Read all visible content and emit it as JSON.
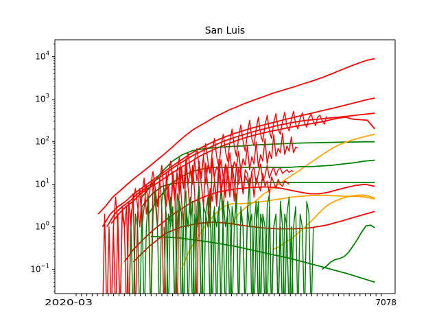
{
  "chart_data": {
    "type": "line",
    "title": "San Luis",
    "xlabel": "",
    "ylabel": "",
    "yscale": "log",
    "ylim": [
      0.027,
      25000
    ],
    "y_ticks": [
      {
        "value": 0.1,
        "base": "10",
        "exp": "−1"
      },
      {
        "value": 1,
        "base": "10",
        "exp": "0"
      },
      {
        "value": 10,
        "base": "10",
        "exp": "1"
      },
      {
        "value": 100,
        "base": "10",
        "exp": "2"
      },
      {
        "value": 1000,
        "base": "10",
        "exp": "3"
      },
      {
        "value": 10000,
        "base": "10",
        "exp": "4"
      }
    ],
    "x_tick_label_left": "2020-03",
    "x_tick_label_right": "7078",
    "x_tick_count": 58,
    "n_points": 140,
    "grid": false,
    "series": [
      {
        "color": "#ff0000",
        "kind": "smooth",
        "start": 10,
        "values": [
          2,
          3,
          5,
          7,
          10,
          14,
          19,
          26,
          36,
          50,
          70,
          100,
          140,
          190,
          240,
          300,
          380,
          460,
          560,
          660,
          780,
          900,
          1040,
          1200,
          1380,
          1560,
          1760,
          1980,
          2250,
          2550,
          2900,
          3350,
          3900,
          4600,
          5400,
          6300,
          7300,
          8300,
          9000
        ]
      },
      {
        "color": "#ff0000",
        "kind": "smooth",
        "start": 12,
        "values": [
          1,
          2,
          3,
          4,
          6,
          8,
          11,
          15,
          20,
          27,
          36,
          48,
          62,
          78,
          95,
          115,
          135,
          158,
          180,
          205,
          230,
          258,
          285,
          318,
          352,
          390,
          430,
          475,
          525,
          580,
          640,
          710,
          790,
          880,
          980,
          1070
        ]
      },
      {
        "color": "#ff0000",
        "kind": "smooth",
        "start": 14,
        "values": [
          1,
          2,
          3,
          4,
          6,
          8,
          11,
          15,
          20,
          27,
          35,
          45,
          56,
          68,
          82,
          98,
          115,
          132,
          150,
          170,
          190,
          212,
          234,
          258,
          280,
          300,
          318,
          332,
          346,
          360,
          375,
          392,
          410,
          430,
          450,
          470
        ]
      },
      {
        "color": "#ff0000",
        "kind": "smooth",
        "start": 16,
        "values": [
          1.2,
          2,
          3,
          4,
          6,
          8,
          10,
          13,
          17,
          22,
          28,
          35,
          45,
          55,
          66,
          78,
          90,
          105,
          120,
          135,
          150,
          165,
          180,
          195,
          212,
          228,
          245,
          262,
          280,
          300,
          330,
          360,
          380,
          340,
          330,
          320,
          200
        ]
      },
      {
        "color": "#008000",
        "kind": "smooth",
        "start": 30,
        "values": [
          5,
          10,
          20,
          35,
          50,
          62,
          68,
          72,
          75,
          78,
          80,
          84,
          86,
          88,
          90,
          92,
          94,
          95,
          96,
          97,
          98,
          99,
          100,
          100
        ]
      },
      {
        "color": "#ffa500",
        "kind": "smooth",
        "start": 70,
        "values": [
          1,
          2,
          3,
          4,
          6,
          8,
          11,
          15,
          20,
          28,
          38,
          52,
          70,
          88,
          105,
          120,
          135,
          150
        ]
      },
      {
        "color": "#008000",
        "kind": "smooth",
        "start": 33,
        "values": [
          2,
          5,
          10,
          15,
          20,
          23,
          25,
          25,
          25,
          25,
          25,
          25,
          25,
          25,
          26,
          26,
          27,
          28,
          30,
          32,
          35,
          37
        ]
      },
      {
        "color": "#008000",
        "kind": "smooth",
        "start": 30,
        "values": [
          3,
          6,
          9,
          10.5,
          11,
          11,
          11,
          11,
          11,
          11,
          11,
          11,
          11,
          11,
          11,
          11,
          11,
          11,
          11,
          11,
          11,
          11,
          11,
          11
        ]
      },
      {
        "color": "#ff0000",
        "kind": "smooth",
        "start": 22,
        "values": [
          0.15,
          0.3,
          0.5,
          0.8,
          1.2,
          1.8,
          2.5,
          3.5,
          4.5,
          5.5,
          6.5,
          7.2,
          7.8,
          8.2,
          8.5,
          8.7,
          8.5,
          8,
          7.2,
          6.5,
          6,
          6,
          6.5,
          7.5,
          8.5,
          9.5,
          10,
          9
        ]
      },
      {
        "color": "#ffa500",
        "kind": "smooth",
        "start": 48,
        "values": [
          0.1,
          0.3,
          0.6,
          1.2,
          2,
          3,
          3.5,
          3.5,
          3.6,
          3.8,
          4,
          4.3,
          4.6,
          5,
          5.2,
          5.4,
          5.5,
          5.5,
          5.4,
          5.3,
          5.2,
          5.2,
          5,
          4.5
        ]
      },
      {
        "color": "#ff0000",
        "kind": "smooth",
        "start": 26,
        "values": [
          0.15,
          0.35,
          0.7,
          1,
          1.2,
          1.3,
          1.2,
          1.05,
          0.95,
          0.9,
          0.9,
          0.95,
          1.1,
          1.4,
          1.8,
          2.3
        ]
      },
      {
        "color": "#008000",
        "kind": "smooth",
        "start": 34,
        "values": [
          0.6,
          0.55,
          0.45,
          0.35,
          0.25,
          0.18,
          0.12,
          0.08,
          0.05
        ]
      },
      {
        "color": "#008000",
        "kind": "smooth",
        "start": 112,
        "values": [
          0.1,
          0.12,
          0.15,
          0.17,
          0.18,
          0.2,
          0.25,
          0.35,
          0.5,
          0.75,
          1.05,
          1.1,
          0.95
        ]
      },
      {
        "color": "#ffa500",
        "kind": "smooth",
        "start": 90,
        "values": [
          0.3,
          0.35,
          0.45,
          0.55,
          0.75,
          1,
          1.4,
          2,
          2.8,
          3.6,
          4.2,
          4.8,
          5.2,
          5.5,
          5.6,
          5.3,
          4.7
        ]
      },
      {
        "color": "#ff0000",
        "kind": "noisy",
        "start": 12,
        "values": [
          0,
          2,
          0,
          1,
          0,
          1,
          5,
          1,
          0,
          2,
          1,
          3,
          0,
          2,
          4,
          8,
          3,
          1,
          6,
          14,
          2,
          5,
          10,
          20,
          8,
          3,
          12,
          28,
          6,
          9,
          18,
          35,
          12,
          5,
          22,
          42,
          15,
          8,
          30,
          55,
          20,
          10,
          40,
          70,
          25,
          14,
          48,
          90,
          35,
          18,
          60,
          120,
          45,
          25,
          80,
          150,
          60,
          35,
          100,
          200,
          80,
          45,
          130,
          250,
          100,
          60,
          160,
          320,
          120,
          80,
          200,
          380,
          150,
          100,
          240,
          420,
          180,
          120,
          280,
          460,
          200,
          150,
          300,
          500,
          230,
          180,
          330,
          520,
          260,
          200,
          350,
          480,
          280,
          220,
          360,
          450,
          300,
          240,
          380,
          420,
          320,
          260,
          400
        ]
      },
      {
        "color": "#ff0000",
        "kind": "noisy",
        "start": 16,
        "values": [
          0,
          1,
          0,
          2,
          0,
          3,
          1,
          0,
          4,
          1,
          6,
          0,
          2,
          8,
          1,
          3,
          10,
          2,
          0,
          12,
          4,
          1,
          15,
          3,
          0,
          18,
          5,
          2,
          20,
          6,
          0,
          25,
          4,
          1,
          30,
          8,
          2,
          28,
          6,
          0,
          35,
          10,
          3,
          32,
          8,
          1,
          40,
          12,
          4,
          38,
          10,
          2,
          30,
          14,
          5,
          28,
          12,
          3,
          25,
          15,
          6,
          22,
          18,
          8,
          20,
          25,
          10,
          18,
          30,
          12,
          16,
          28,
          14,
          20,
          25,
          16,
          22,
          24,
          18,
          20,
          22,
          19,
          21,
          20
        ]
      },
      {
        "color": "#ff0000",
        "kind": "noisy",
        "start": 40,
        "values": [
          6,
          3,
          9,
          2,
          12,
          4,
          18,
          6,
          25,
          8,
          40,
          10,
          22,
          14,
          35,
          12,
          30,
          16,
          45,
          10,
          28,
          18,
          42,
          15,
          26,
          20,
          38,
          14,
          30,
          22,
          55,
          18,
          34,
          25,
          60,
          20,
          40,
          28,
          80,
          22,
          45,
          30,
          100,
          25,
          50,
          35,
          120,
          30,
          60,
          40,
          150,
          45,
          70,
          55,
          160,
          50,
          80,
          60,
          130,
          55,
          75,
          70
        ]
      },
      {
        "color": "#008000",
        "kind": "noisy",
        "start": 24,
        "values": [
          0,
          1,
          0,
          2,
          1,
          0,
          3,
          0,
          1,
          5,
          0,
          2,
          7,
          1,
          0,
          4,
          8,
          2,
          0,
          5,
          1,
          0,
          6,
          3,
          0,
          2,
          7,
          0,
          1,
          4,
          0,
          3,
          9,
          1,
          0,
          2,
          5,
          0,
          1,
          3,
          0,
          2,
          8,
          1,
          0,
          4,
          2,
          0,
          1,
          6,
          0,
          3,
          1,
          0,
          2,
          14,
          0,
          1,
          4,
          0,
          2,
          1,
          0,
          3,
          6,
          0,
          1,
          2,
          0,
          4,
          1,
          0,
          2,
          5,
          0,
          1,
          3,
          0,
          2,
          1,
          0,
          4,
          2,
          0,
          1
        ]
      },
      {
        "color": "#008000",
        "kind": "noisy",
        "start": 40,
        "values": [
          1,
          0,
          2,
          1,
          3,
          0,
          1,
          4,
          2,
          0,
          3,
          1,
          5,
          0,
          2,
          1,
          4,
          0,
          3,
          2,
          1,
          6,
          0,
          2,
          1,
          3,
          0,
          4,
          1,
          2,
          0,
          3,
          1,
          5,
          0,
          2,
          1,
          0,
          3,
          1,
          2,
          0,
          1,
          4,
          0,
          2,
          1,
          0,
          3,
          0,
          1,
          2,
          0,
          1,
          0,
          2,
          1,
          0,
          1,
          0
        ]
      },
      {
        "color": "#ff0000",
        "kind": "noisy",
        "start": 60,
        "values": [
          2,
          8,
          4,
          12,
          3,
          20,
          6,
          15,
          5,
          25,
          8,
          18,
          4,
          30,
          10,
          22,
          6,
          16,
          12,
          8,
          20,
          5,
          14,
          10,
          7,
          18,
          9,
          12,
          6,
          15,
          11,
          8,
          13,
          10,
          9,
          12,
          11,
          10
        ]
      }
    ]
  }
}
